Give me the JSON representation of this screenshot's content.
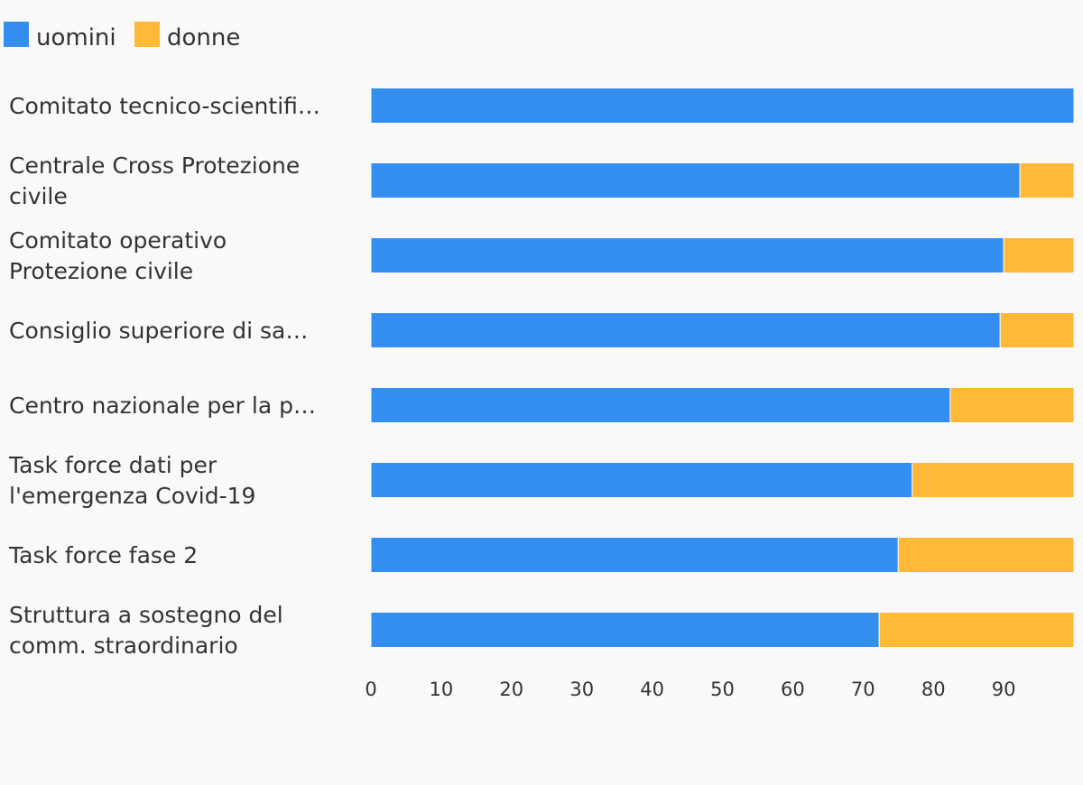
{
  "chart_data": {
    "type": "bar",
    "orientation": "horizontal",
    "stacked": true,
    "legend_position": "top-left",
    "grid": false,
    "xlim": [
      0,
      100
    ],
    "x_ticks": [
      "0",
      "10",
      "20",
      "30",
      "40",
      "50",
      "60",
      "70",
      "80",
      "90"
    ],
    "categories": [
      [
        "Comitato tecnico-scientifi…"
      ],
      [
        "Centrale Cross Protezione",
        "civile"
      ],
      [
        "Comitato operativo",
        "Protezione civile"
      ],
      [
        "Consiglio superiore di sa…"
      ],
      [
        "Centro nazionale per la p…"
      ],
      [
        "Task force dati per",
        "l'emergenza Covid-19"
      ],
      [
        "Task force fase 2"
      ],
      [
        "Struttura a sostegno del",
        "comm. straordinario"
      ]
    ],
    "series": [
      {
        "name": "uomini",
        "color": "#348ef0",
        "values": [
          100,
          92.3,
          90,
          89.5,
          82.4,
          77,
          75,
          72.3
        ]
      },
      {
        "name": "donne",
        "color": "#ffb937",
        "values": [
          0,
          7.7,
          10,
          10.5,
          17.6,
          23,
          25,
          27.7
        ]
      }
    ]
  }
}
